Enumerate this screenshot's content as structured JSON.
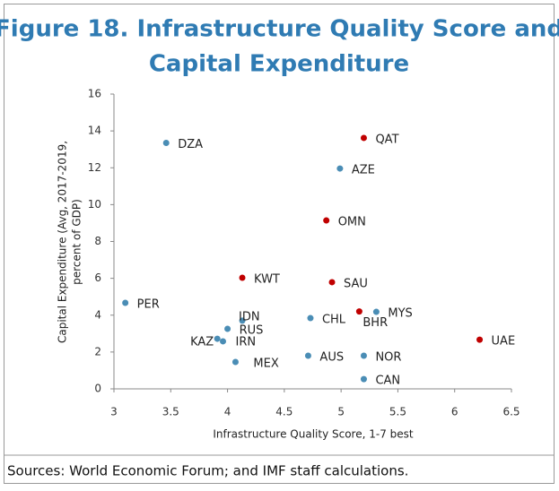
{
  "chart_data": {
    "type": "scatter",
    "title": [
      "Figure 18. Infrastructure Quality Score and",
      "Capital Expenditure"
    ],
    "x_label": "Infrastructure Quality Score, 1-7 best",
    "y_label": [
      "Capital Expenditure (Avg, 2017-2019,",
      "percent of GDP)"
    ],
    "source": "Sources: World Economic Forum; and IMF staff calculations.",
    "labels": [
      "DZA",
      "QAT",
      "AZE",
      "OMN",
      "KWT",
      "SAU",
      "PER",
      "MYS",
      "BHR",
      "IDN",
      "CHL",
      "RUS",
      "KAZ",
      "IRN",
      "MEX",
      "AUS",
      "NOR",
      "CAN",
      "UAE"
    ],
    "x": [
      3.46,
      5.2,
      4.99,
      4.87,
      4.13,
      4.92,
      3.1,
      5.31,
      5.16,
      4.13,
      4.73,
      4.0,
      3.91,
      3.96,
      4.07,
      4.71,
      5.2,
      5.2,
      6.22
    ],
    "values": [
      13.35,
      13.62,
      11.96,
      9.14,
      6.03,
      5.79,
      4.67,
      4.18,
      4.2,
      3.7,
      3.84,
      3.26,
      2.72,
      2.58,
      1.46,
      1.8,
      1.8,
      0.53,
      2.67
    ],
    "colors": [
      "#4a8db5",
      "#c00000",
      "#4a8db5",
      "#c00000",
      "#c00000",
      "#c00000",
      "#4a8db5",
      "#4a8db5",
      "#c00000",
      "#4a8db5",
      "#4a8db5",
      "#4a8db5",
      "#4a8db5",
      "#4a8db5",
      "#4a8db5",
      "#4a8db5",
      "#4a8db5",
      "#4a8db5",
      "#c00000"
    ],
    "xlim": [
      3,
      6.5
    ],
    "xticks": [
      3,
      3.5,
      4,
      4.5,
      5,
      5.5,
      6,
      6.5
    ],
    "ylim": [
      0,
      16
    ],
    "yticks": [
      0,
      2,
      4,
      6,
      8,
      10,
      12,
      14,
      16
    ]
  }
}
